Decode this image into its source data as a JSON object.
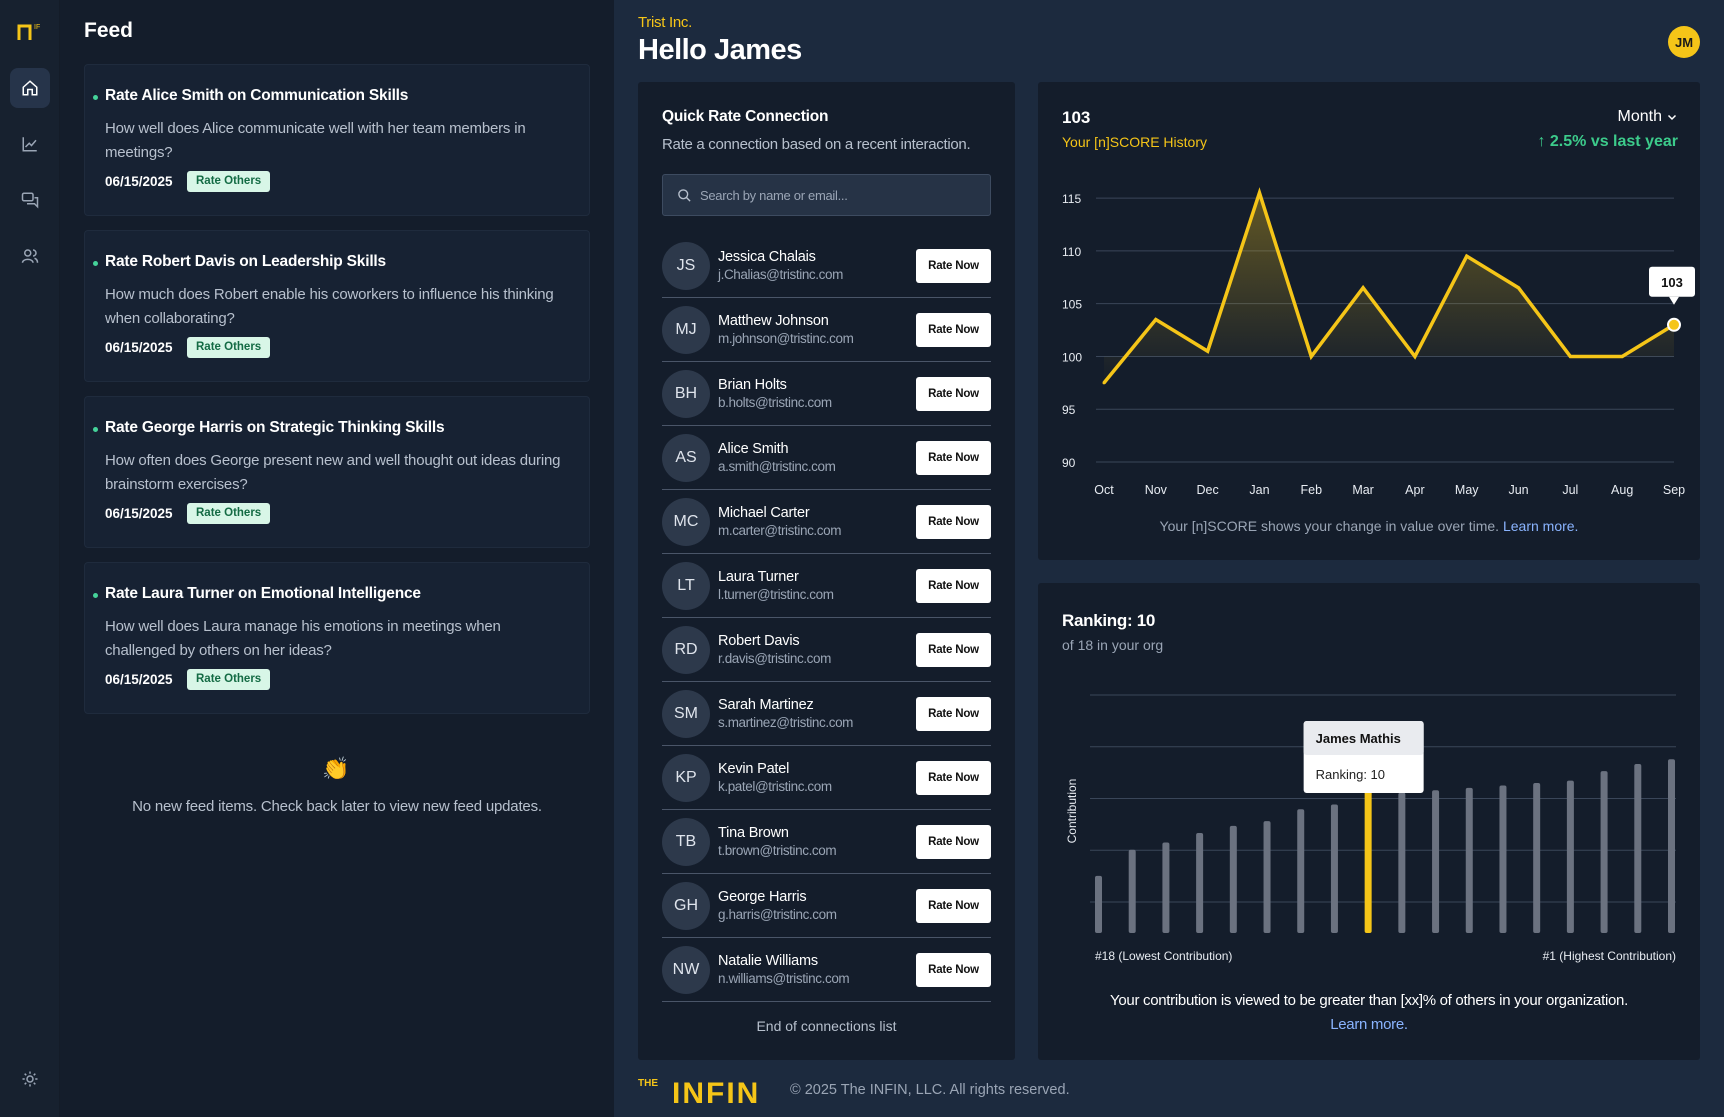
{
  "rail": {
    "icons": [
      "home-icon",
      "chart-icon",
      "chat-icon",
      "users-icon",
      "sun-icon"
    ]
  },
  "feed": {
    "title": "Feed",
    "items": [
      {
        "title": "Rate Alice Smith on Communication Skills",
        "question": "How well does Alice communicate well with her team members in meetings?",
        "date": "06/15/2025",
        "badge": "Rate Others"
      },
      {
        "title": "Rate Robert Davis on Leadership Skills",
        "question": "How much does Robert enable his coworkers to influence his thinking when collaborating?",
        "date": "06/15/2025",
        "badge": "Rate Others"
      },
      {
        "title": "Rate George Harris on Strategic Thinking Skills",
        "question": "How often does George present new and well thought out ideas during brainstorm exercises?",
        "date": "06/15/2025",
        "badge": "Rate Others"
      },
      {
        "title": "Rate Laura Turner on Emotional Intelligence",
        "question": "How well does Laura manage his emotions in meetings when challenged by others on her ideas?",
        "date": "06/15/2025",
        "badge": "Rate Others"
      }
    ],
    "empty_icon": "👏",
    "empty_text": "No new feed items.  Check back later to view new feed updates."
  },
  "header": {
    "company": "Trist Inc.",
    "greeting": "Hello James",
    "avatar": "JM"
  },
  "quick_rate": {
    "title": "Quick Rate Connection",
    "subtitle": "Rate a connection based on a recent interaction.",
    "search_placeholder": "Search by name or email...",
    "button_label": "Rate Now",
    "end_text": "End of connections list",
    "connections": [
      {
        "initials": "JS",
        "name": "Jessica Chalais",
        "email": "j.Chalias@tristinc.com"
      },
      {
        "initials": "MJ",
        "name": "Matthew Johnson",
        "email": "m.johnson@tristinc.com"
      },
      {
        "initials": "BH",
        "name": "Brian Holts",
        "email": "b.holts@tristinc.com"
      },
      {
        "initials": "AS",
        "name": "Alice Smith",
        "email": "a.smith@tristinc.com"
      },
      {
        "initials": "MC",
        "name": "Michael Carter",
        "email": "m.carter@tristinc.com"
      },
      {
        "initials": "LT",
        "name": "Laura Turner",
        "email": "l.turner@tristinc.com"
      },
      {
        "initials": "RD",
        "name": "Robert Davis",
        "email": "r.davis@tristinc.com"
      },
      {
        "initials": "SM",
        "name": "Sarah Martinez",
        "email": "s.martinez@tristinc.com"
      },
      {
        "initials": "KP",
        "name": "Kevin Patel",
        "email": "k.patel@tristinc.com"
      },
      {
        "initials": "TB",
        "name": "Tina Brown",
        "email": "t.brown@tristinc.com"
      },
      {
        "initials": "GH",
        "name": "George Harris",
        "email": "g.harris@tristinc.com"
      },
      {
        "initials": "NW",
        "name": "Natalie Williams",
        "email": "n.williams@tristinc.com"
      }
    ]
  },
  "score": {
    "value": "103",
    "label": "Your [n]SCORE History",
    "period": "Month",
    "delta": "↑ 2.5% vs last year",
    "note": "Your [n]SCORE shows your change in value over time.",
    "learn_more": "Learn more."
  },
  "ranking": {
    "title": "Ranking: 10",
    "subtitle": "of 18 in your org",
    "y_label": "Contribution",
    "left_label": "#18 (Lowest Contribution)",
    "right_label": "#1 (Highest Contribution)",
    "tooltip_name": "James Mathis",
    "tooltip_rank": "Ranking: 10",
    "foot": "Your contribution is viewed to be greater than [xx]% of others in your organization.",
    "learn_more": "Learn more."
  },
  "footer": {
    "brand_small": "THE",
    "brand": "INFIN",
    "copyright": "© 2025 The INFIN, LLC. All rights reserved."
  },
  "colors": {
    "accent": "#f5c518",
    "positive": "#3ccb8b",
    "bar": "#6b7280"
  },
  "chart_data": [
    {
      "type": "line",
      "x": [
        "Oct",
        "Nov",
        "Dec",
        "Jan",
        "Feb",
        "Mar",
        "Apr",
        "May",
        "Jun",
        "Jul",
        "Aug",
        "Sep"
      ],
      "series": [
        {
          "values": [
            97.5,
            103.5,
            100.5,
            115.5,
            100.0,
            106.5,
            100.0,
            109.5,
            106.5,
            100.0,
            100.0,
            103.0
          ]
        }
      ],
      "yticks": [
        90,
        95,
        100,
        105,
        110,
        115
      ],
      "ylim": [
        90,
        117
      ],
      "grid": true,
      "annotation": {
        "x": "Sep",
        "label": "103"
      }
    },
    {
      "type": "bar",
      "categories": [
        "18",
        "17",
        "16",
        "15",
        "14",
        "13",
        "12",
        "11",
        "10",
        "9",
        "8",
        "7",
        "6",
        "5",
        "4",
        "3",
        "2",
        "1"
      ],
      "values": [
        24,
        35,
        38,
        42,
        45,
        47,
        52,
        54,
        62,
        59,
        60,
        61,
        62,
        63,
        64,
        68,
        71,
        73
      ],
      "highlight": "10",
      "ylim": [
        0,
        100
      ],
      "grid": true,
      "ylabel": "Contribution"
    }
  ]
}
